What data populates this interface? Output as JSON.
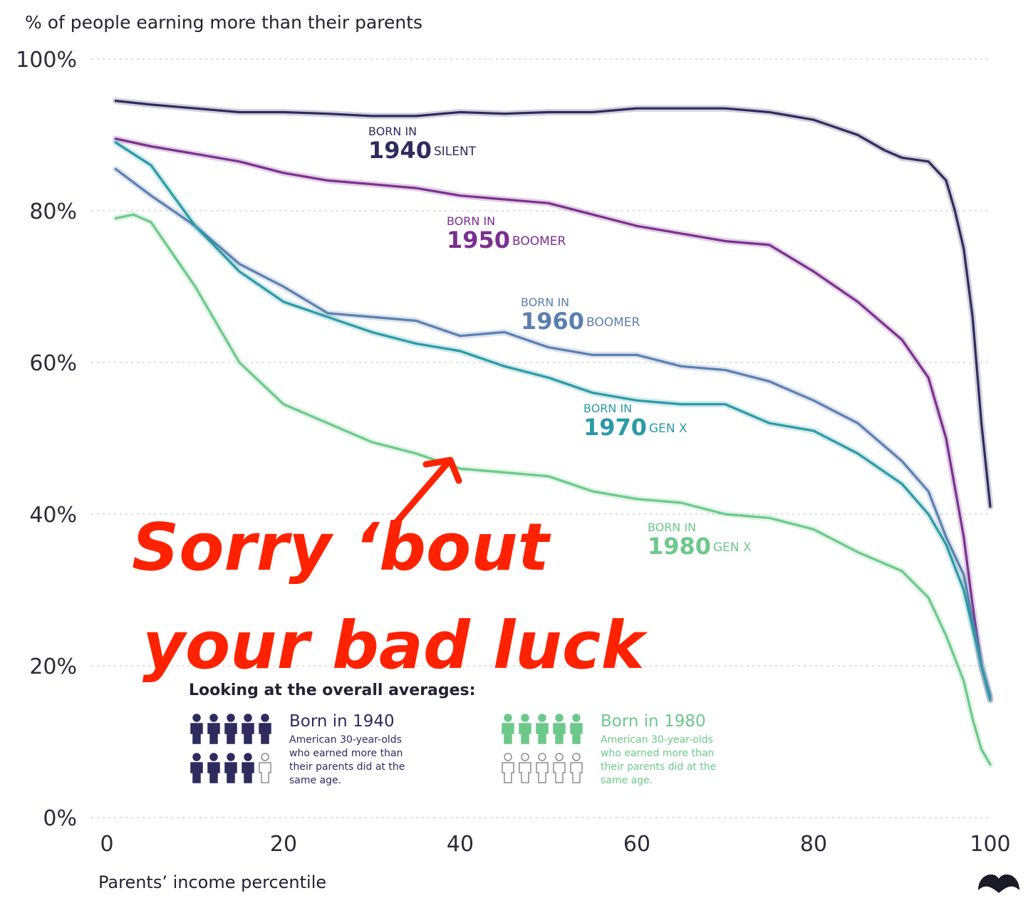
{
  "chart_data": {
    "type": "line",
    "title": "% of people earning more than their parents",
    "xlabel": "Parents’ income percentile",
    "ylabel": "% of people earning more than their parents",
    "xlim": [
      0,
      100
    ],
    "ylim": [
      0,
      100
    ],
    "x_ticks": [
      "0",
      "20",
      "40",
      "60",
      "80",
      "100"
    ],
    "y_ticks": [
      "0%",
      "20%",
      "40%",
      "60%",
      "80%",
      "100%"
    ],
    "grid": true,
    "legend": "inline labels",
    "series": [
      {
        "key": "s1940",
        "color": "#2e2b5e",
        "label_top": "BORN IN",
        "label_year": "1940",
        "label_gen": "SILENT",
        "x": [
          1,
          5,
          10,
          15,
          20,
          25,
          30,
          35,
          40,
          45,
          50,
          55,
          60,
          65,
          70,
          75,
          80,
          85,
          88,
          90,
          93,
          95,
          96,
          97,
          98,
          99,
          100
        ],
        "y": [
          94.5,
          94,
          93.5,
          93,
          93,
          92.8,
          92.5,
          92.5,
          93,
          92.8,
          93,
          93,
          93.5,
          93.5,
          93.5,
          93,
          92,
          90,
          88,
          87,
          86.5,
          84,
          80,
          75,
          66,
          52,
          41
        ]
      },
      {
        "key": "s1950",
        "color": "#7b2f8f",
        "label_top": "BORN IN",
        "label_year": "1950",
        "label_gen": "BOOMER",
        "x": [
          1,
          5,
          10,
          15,
          20,
          25,
          30,
          35,
          40,
          45,
          50,
          55,
          60,
          65,
          70,
          75,
          80,
          85,
          88,
          90,
          93,
          95,
          97,
          98,
          99,
          100
        ],
        "y": [
          89.5,
          88.5,
          87.5,
          86.5,
          85,
          84,
          83.5,
          83,
          82,
          81.5,
          81,
          79.5,
          78,
          77,
          76,
          75.5,
          72,
          68,
          65,
          63,
          58,
          50,
          37,
          28,
          20,
          15.5
        ]
      },
      {
        "key": "s1960",
        "color": "#5b7fb0",
        "label_top": "BORN IN",
        "label_year": "1960",
        "label_gen": "BOOMER",
        "x": [
          1,
          5,
          10,
          15,
          20,
          25,
          30,
          35,
          40,
          45,
          50,
          55,
          60,
          65,
          70,
          75,
          80,
          85,
          90,
          93,
          95,
          97,
          98,
          99,
          100
        ],
        "y": [
          85.5,
          82,
          78,
          73,
          70,
          66.5,
          66,
          65.5,
          63.5,
          64,
          62,
          61,
          61,
          59.5,
          59,
          57.5,
          55,
          52,
          47,
          43,
          37,
          32,
          26,
          20,
          16
        ]
      },
      {
        "key": "s1970",
        "color": "#2a9aa6",
        "label_top": "BORN IN",
        "label_year": "1970",
        "label_gen": "GEN X",
        "x": [
          1,
          5,
          10,
          15,
          20,
          25,
          30,
          35,
          40,
          45,
          50,
          55,
          60,
          65,
          70,
          75,
          80,
          85,
          90,
          93,
          95,
          97,
          98,
          99,
          100
        ],
        "y": [
          89,
          86,
          78,
          72,
          68,
          66,
          64,
          62.5,
          61.5,
          59.5,
          58,
          56,
          55,
          54.5,
          54.5,
          52,
          51,
          48,
          44,
          40,
          36,
          30,
          25,
          20,
          15.5
        ]
      },
      {
        "key": "s1980",
        "color": "#6cc98a",
        "label_top": "BORN IN",
        "label_year": "1980",
        "label_gen": "GEN X",
        "x": [
          1,
          3,
          5,
          10,
          15,
          20,
          25,
          30,
          35,
          40,
          45,
          50,
          55,
          60,
          65,
          70,
          75,
          80,
          85,
          90,
          93,
          95,
          97,
          98,
          99,
          100
        ],
        "y": [
          79,
          79.5,
          78.5,
          70,
          60,
          54.5,
          52,
          49.5,
          48,
          46,
          45.5,
          45,
          43,
          42,
          41.5,
          40,
          39.5,
          38,
          35,
          32.5,
          29,
          24,
          18,
          13,
          9,
          7
        ]
      }
    ]
  },
  "inset": {
    "title": "Looking at the overall averages:",
    "left": {
      "heading": "Born in 1940",
      "lines": [
        "American 30-year-olds",
        "who earned more than",
        "their parents did at the",
        "same age."
      ],
      "filled": 9,
      "total": 10,
      "color": "#2e2b5e"
    },
    "right": {
      "heading": "Born in 1980",
      "lines": [
        "American 30-year-olds",
        "who earned more than",
        "their parents did at the",
        "same age."
      ],
      "filled": 5,
      "total": 10,
      "color": "#6cc98a"
    }
  },
  "annotation": {
    "line1": "Sorry ‘bout",
    "line2": "your bad luck",
    "color": "#ff2200"
  },
  "logo": "publisher-logo-icon"
}
